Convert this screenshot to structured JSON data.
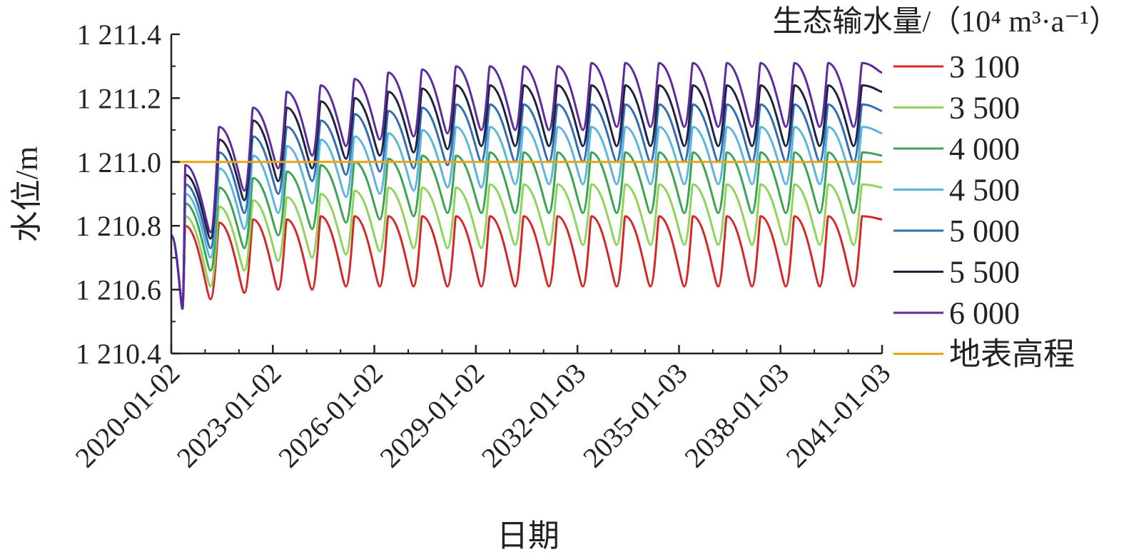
{
  "chart_data": {
    "type": "line",
    "xlabel": "日期",
    "ylabel": "水位/m",
    "legend_title": "生态输水量/（10⁴ m³·a⁻¹）",
    "legend_position": "right",
    "grid": false,
    "ylim": [
      1210.4,
      1211.4
    ],
    "yticks": [
      1210.4,
      1210.6,
      1210.8,
      1211.0,
      1211.2,
      1211.4
    ],
    "ytick_labels": [
      "1 210.4",
      "1 210.6",
      "1 210.8",
      "1 211.0",
      "1 211.2",
      "1 211.4"
    ],
    "xlim": [
      "2020-01-02",
      "2041-01-03"
    ],
    "xticks": [
      "2020-01-02",
      "2023-01-02",
      "2026-01-02",
      "2029-01-02",
      "2032-01-03",
      "2035-01-03",
      "2038-01-03",
      "2041-01-03"
    ],
    "x": [
      "2020-01-02",
      "2020-05-01",
      "2020-06-01",
      "2021-03-01",
      "2021-06-01",
      "2022-03-01",
      "2022-06-01",
      "2023-03-01",
      "2023-06-01",
      "2024-03-01",
      "2024-06-01",
      "2025-03-01",
      "2025-06-01",
      "2026-03-01",
      "2026-06-01",
      "2027-03-01",
      "2027-06-01",
      "2028-03-01",
      "2028-06-01",
      "2029-03-01",
      "2029-06-01",
      "2030-03-01",
      "2030-06-01",
      "2031-03-01",
      "2031-06-01",
      "2032-03-01",
      "2032-06-01",
      "2033-03-01",
      "2033-06-01",
      "2034-03-01",
      "2034-06-01",
      "2035-03-01",
      "2035-06-01",
      "2036-03-01",
      "2036-06-01",
      "2037-03-01",
      "2037-06-01",
      "2038-03-01",
      "2038-06-01",
      "2039-03-01",
      "2039-06-01",
      "2040-03-01",
      "2040-06-01",
      "2041-01-03"
    ],
    "series": [
      {
        "name": "3 100",
        "color": "#d62728",
        "values": [
          1210.77,
          1210.54,
          1210.8,
          1210.57,
          1210.81,
          1210.59,
          1210.82,
          1210.6,
          1210.82,
          1210.6,
          1210.83,
          1210.61,
          1210.83,
          1210.61,
          1210.83,
          1210.61,
          1210.83,
          1210.61,
          1210.83,
          1210.61,
          1210.83,
          1210.61,
          1210.83,
          1210.61,
          1210.83,
          1210.61,
          1210.83,
          1210.61,
          1210.83,
          1210.61,
          1210.83,
          1210.61,
          1210.83,
          1210.61,
          1210.83,
          1210.61,
          1210.83,
          1210.61,
          1210.83,
          1210.61,
          1210.83,
          1210.61,
          1210.83,
          1210.82
        ]
      },
      {
        "name": "3 500",
        "color": "#8fd45a",
        "values": [
          1210.77,
          1210.54,
          1210.83,
          1210.61,
          1210.86,
          1210.66,
          1210.88,
          1210.69,
          1210.89,
          1210.7,
          1210.9,
          1210.71,
          1210.91,
          1210.72,
          1210.92,
          1210.73,
          1210.92,
          1210.73,
          1210.92,
          1210.73,
          1210.93,
          1210.74,
          1210.93,
          1210.74,
          1210.93,
          1210.74,
          1210.93,
          1210.74,
          1210.93,
          1210.74,
          1210.93,
          1210.74,
          1210.93,
          1210.74,
          1210.93,
          1210.74,
          1210.93,
          1210.74,
          1210.93,
          1210.74,
          1210.93,
          1210.74,
          1210.93,
          1210.92
        ]
      },
      {
        "name": "4 000",
        "color": "#3ca352",
        "values": [
          1210.77,
          1210.54,
          1210.87,
          1210.66,
          1210.92,
          1210.73,
          1210.95,
          1210.77,
          1210.97,
          1210.79,
          1210.99,
          1210.81,
          1211.0,
          1210.82,
          1211.01,
          1210.83,
          1211.02,
          1210.84,
          1211.02,
          1210.84,
          1211.03,
          1210.84,
          1211.03,
          1210.84,
          1211.03,
          1210.84,
          1211.03,
          1210.84,
          1211.03,
          1210.84,
          1211.03,
          1210.84,
          1211.03,
          1210.84,
          1211.03,
          1210.84,
          1211.03,
          1210.84,
          1211.03,
          1210.84,
          1211.03,
          1210.84,
          1211.03,
          1211.02
        ]
      },
      {
        "name": "4 500",
        "color": "#5bb5e0",
        "values": [
          1210.77,
          1210.54,
          1210.9,
          1210.7,
          1210.98,
          1210.79,
          1211.02,
          1210.84,
          1211.05,
          1210.87,
          1211.07,
          1210.89,
          1211.08,
          1210.9,
          1211.09,
          1210.91,
          1211.1,
          1210.92,
          1211.11,
          1210.92,
          1211.11,
          1210.93,
          1211.11,
          1210.93,
          1211.11,
          1210.93,
          1211.11,
          1210.93,
          1211.11,
          1210.93,
          1211.11,
          1210.93,
          1211.11,
          1210.93,
          1211.11,
          1210.93,
          1211.11,
          1210.93,
          1211.11,
          1210.93,
          1211.11,
          1210.93,
          1211.11,
          1211.09
        ]
      },
      {
        "name": "5 000",
        "color": "#2f6db5",
        "values": [
          1210.77,
          1210.54,
          1210.93,
          1210.73,
          1211.03,
          1210.84,
          1211.08,
          1210.9,
          1211.11,
          1210.94,
          1211.13,
          1210.96,
          1211.15,
          1210.97,
          1211.16,
          1210.98,
          1211.17,
          1210.99,
          1211.18,
          1211.0,
          1211.18,
          1211.0,
          1211.18,
          1211.0,
          1211.18,
          1211.0,
          1211.18,
          1211.0,
          1211.18,
          1211.0,
          1211.18,
          1211.0,
          1211.18,
          1211.0,
          1211.18,
          1211.0,
          1211.18,
          1211.0,
          1211.18,
          1211.0,
          1211.18,
          1211.0,
          1211.18,
          1211.16
        ]
      },
      {
        "name": "5 500",
        "color": "#1d2340",
        "values": [
          1210.77,
          1210.54,
          1210.96,
          1210.76,
          1211.07,
          1210.88,
          1211.13,
          1210.94,
          1211.17,
          1210.98,
          1211.19,
          1211.01,
          1211.2,
          1211.02,
          1211.22,
          1211.03,
          1211.23,
          1211.04,
          1211.24,
          1211.05,
          1211.24,
          1211.05,
          1211.24,
          1211.05,
          1211.24,
          1211.05,
          1211.24,
          1211.05,
          1211.24,
          1211.05,
          1211.24,
          1211.05,
          1211.24,
          1211.05,
          1211.24,
          1211.05,
          1211.24,
          1211.05,
          1211.24,
          1211.05,
          1211.24,
          1211.05,
          1211.24,
          1211.22
        ]
      },
      {
        "name": "6 000",
        "color": "#5e2a9e",
        "values": [
          1210.77,
          1210.54,
          1210.99,
          1210.78,
          1211.11,
          1210.91,
          1211.17,
          1210.98,
          1211.22,
          1211.02,
          1211.24,
          1211.05,
          1211.26,
          1211.07,
          1211.28,
          1211.08,
          1211.29,
          1211.09,
          1211.3,
          1211.1,
          1211.3,
          1211.1,
          1211.3,
          1211.1,
          1211.3,
          1211.1,
          1211.31,
          1211.11,
          1211.31,
          1211.11,
          1211.31,
          1211.11,
          1211.31,
          1211.11,
          1211.31,
          1211.11,
          1211.31,
          1211.11,
          1211.31,
          1211.11,
          1211.31,
          1211.11,
          1211.31,
          1211.28
        ]
      }
    ],
    "reference_line": {
      "name": "地表高程",
      "color": "#e8a317",
      "value": 1211.0
    }
  }
}
